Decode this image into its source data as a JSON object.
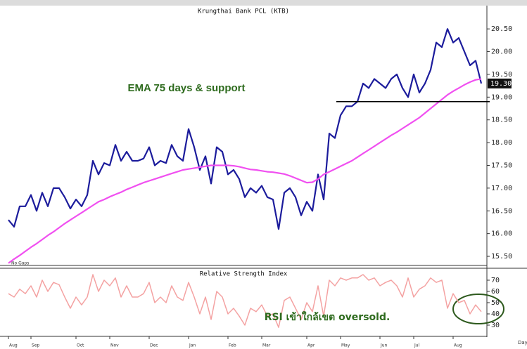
{
  "chart_data": [
    {
      "type": "line",
      "title": "Krungthai Bank PCL (KTB)",
      "annotation": "EMA 75 days & support",
      "note": "No Gaps",
      "series": [
        {
          "color": "#1c1c9c",
          "values": [
            16.3,
            16.15,
            16.6,
            16.6,
            16.85,
            16.5,
            16.9,
            16.6,
            17.0,
            17.0,
            16.8,
            16.55,
            16.75,
            16.6,
            16.85,
            17.6,
            17.3,
            17.55,
            17.5,
            17.95,
            17.6,
            17.8,
            17.6,
            17.6,
            17.65,
            17.9,
            17.5,
            17.6,
            17.55,
            17.95,
            17.7,
            17.6,
            18.3,
            17.9,
            17.4,
            17.7,
            17.1,
            17.9,
            17.8,
            17.3,
            17.4,
            17.2,
            16.8,
            17.0,
            16.9,
            17.05,
            16.8,
            16.75,
            16.1,
            16.9,
            17.0,
            16.8,
            16.4,
            16.7,
            16.5,
            17.3,
            16.75,
            18.2,
            18.1,
            18.6,
            18.8,
            18.8,
            18.9,
            19.3,
            19.2,
            19.4,
            19.3,
            19.2,
            19.4,
            19.5,
            19.2,
            19.0,
            19.5,
            19.1,
            19.3,
            19.6,
            20.2,
            20.1,
            20.5,
            20.2,
            20.3,
            20.0,
            19.7,
            19.8,
            19.3
          ]
        },
        {
          "color": "#f050f0",
          "values": [
            15.35,
            15.44,
            15.52,
            15.61,
            15.7,
            15.78,
            15.87,
            15.96,
            16.04,
            16.13,
            16.22,
            16.3,
            16.38,
            16.46,
            16.54,
            16.62,
            16.7,
            16.75,
            16.81,
            16.86,
            16.91,
            16.97,
            17.02,
            17.07,
            17.12,
            17.16,
            17.2,
            17.24,
            17.28,
            17.32,
            17.36,
            17.4,
            17.42,
            17.44,
            17.46,
            17.48,
            17.5,
            17.5,
            17.5,
            17.5,
            17.49,
            17.47,
            17.44,
            17.41,
            17.4,
            17.38,
            17.36,
            17.35,
            17.33,
            17.31,
            17.27,
            17.22,
            17.17,
            17.12,
            17.13,
            17.2,
            17.3,
            17.36,
            17.42,
            17.48,
            17.54,
            17.6,
            17.68,
            17.76,
            17.84,
            17.92,
            18.0,
            18.08,
            18.16,
            18.23,
            18.31,
            18.39,
            18.47,
            18.55,
            18.65,
            18.75,
            18.85,
            18.95,
            19.05,
            19.13,
            19.2,
            19.27,
            19.33,
            19.38,
            19.4
          ]
        }
      ],
      "ylim": [
        15.3,
        20.95
      ],
      "yticks": [
        {
          "value": 15.5,
          "label": "15.50"
        },
        {
          "value": 16,
          "label": "16.00"
        },
        {
          "value": 16.5,
          "label": "16.50"
        },
        {
          "value": 17,
          "label": "17.00"
        },
        {
          "value": 17.5,
          "label": "17.50"
        },
        {
          "value": 18,
          "label": "18.00"
        },
        {
          "value": 18.5,
          "label": "18.50"
        },
        {
          "value": 19,
          "label": "19.00"
        },
        {
          "value": 19.5,
          "label": "19.50"
        },
        {
          "value": 20,
          "label": "20.00"
        },
        {
          "value": 20.5,
          "label": "20.50"
        }
      ],
      "last_price": {
        "value": 19.3,
        "label": "19.30"
      },
      "support_level": 18.9
    },
    {
      "type": "line",
      "title": "Relative Strength Index",
      "annotation": "RSI เข้าใกล้เขต oversold.",
      "x_label": "Day",
      "categories": [
        "Aug",
        null,
        null,
        null,
        "Sep",
        null,
        null,
        null,
        null,
        null,
        null,
        null,
        "Oct",
        null,
        null,
        null,
        null,
        null,
        "Nov",
        null,
        null,
        null,
        null,
        null,
        null,
        "Dec",
        null,
        null,
        null,
        null,
        null,
        null,
        "Jan",
        null,
        null,
        null,
        null,
        null,
        null,
        "Feb",
        null,
        null,
        null,
        null,
        null,
        "Mar",
        null,
        null,
        null,
        null,
        null,
        null,
        null,
        "Apr",
        null,
        null,
        null,
        null,
        null,
        "May",
        null,
        null,
        null,
        null,
        null,
        null,
        "Jun",
        null,
        null,
        null,
        null,
        null,
        "Jul",
        null,
        null,
        null,
        null,
        null,
        null,
        "Aug",
        null,
        null,
        null,
        null,
        null
      ],
      "series": [
        {
          "color": "#f4a2a2",
          "values": [
            58,
            55,
            62,
            58,
            65,
            55,
            70,
            60,
            68,
            66,
            55,
            45,
            55,
            48,
            55,
            75,
            60,
            70,
            65,
            72,
            55,
            65,
            55,
            55,
            58,
            68,
            50,
            55,
            50,
            65,
            55,
            52,
            68,
            55,
            40,
            55,
            35,
            60,
            55,
            40,
            45,
            38,
            30,
            45,
            42,
            48,
            38,
            40,
            28,
            52,
            55,
            45,
            35,
            50,
            42,
            65,
            38,
            70,
            65,
            72,
            70,
            72,
            72,
            75,
            70,
            72,
            65,
            68,
            70,
            65,
            55,
            72,
            55,
            62,
            65,
            72,
            68,
            70,
            45,
            58,
            50,
            52,
            40,
            48,
            42
          ]
        }
      ],
      "ylim": [
        22.5,
        77.5
      ],
      "yticks": [
        30,
        40,
        50,
        60,
        70
      ]
    }
  ]
}
